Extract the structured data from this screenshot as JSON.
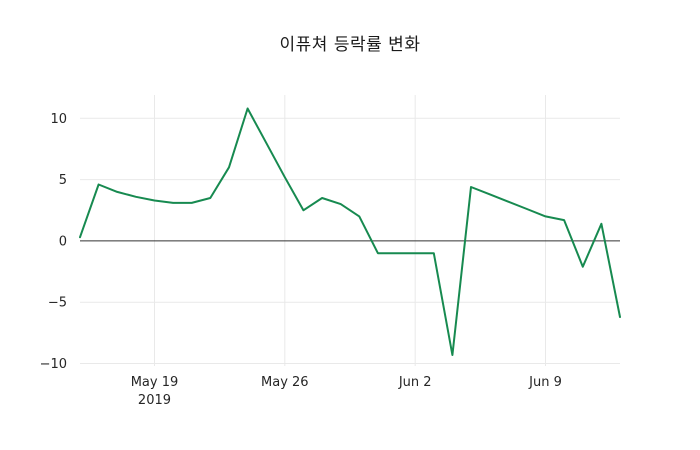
{
  "chart_data": {
    "type": "line",
    "title": "이퓨쳐 등락률 변화",
    "x": [
      "2019-05-15",
      "2019-05-16",
      "2019-05-17",
      "2019-05-18",
      "2019-05-19",
      "2019-05-20",
      "2019-05-21",
      "2019-05-22",
      "2019-05-23",
      "2019-05-24",
      "2019-05-25",
      "2019-05-26",
      "2019-05-27",
      "2019-05-28",
      "2019-05-29",
      "2019-05-30",
      "2019-05-31",
      "2019-06-01",
      "2019-06-02",
      "2019-06-03",
      "2019-06-04",
      "2019-06-05",
      "2019-06-06",
      "2019-06-07",
      "2019-06-08",
      "2019-06-09",
      "2019-06-10",
      "2019-06-11",
      "2019-06-12",
      "2019-06-13"
    ],
    "series": [
      {
        "color": "#178a50",
        "values": [
          0.3,
          4.6,
          4.0,
          3.6,
          3.3,
          3.1,
          3.1,
          3.5,
          6.0,
          10.8,
          8.0,
          5.2,
          2.5,
          3.5,
          3.0,
          2.0,
          -1.0,
          -1.0,
          -1.0,
          -1.0,
          -9.3,
          4.4,
          3.8,
          3.2,
          2.6,
          2.0,
          1.7,
          -2.1,
          1.4,
          -6.2
        ]
      }
    ],
    "x_ticks": [
      {
        "index": 4,
        "label": "May 19",
        "sublabel": "2019"
      },
      {
        "index": 11,
        "label": "May 26",
        "sublabel": ""
      },
      {
        "index": 18,
        "label": "Jun 2",
        "sublabel": ""
      },
      {
        "index": 25,
        "label": "Jun 9",
        "sublabel": ""
      }
    ],
    "y_ticks": [
      10,
      5,
      0,
      -5,
      -10
    ],
    "ylim": [
      -10.2,
      11.9
    ],
    "grid": true,
    "zero_line": true,
    "legend": "none",
    "colors": {
      "grid": "#e9e9e9",
      "zero_line": "#333333",
      "tick_label": "#262626",
      "title": "#1a1a1a",
      "background": "#ffffff"
    }
  }
}
